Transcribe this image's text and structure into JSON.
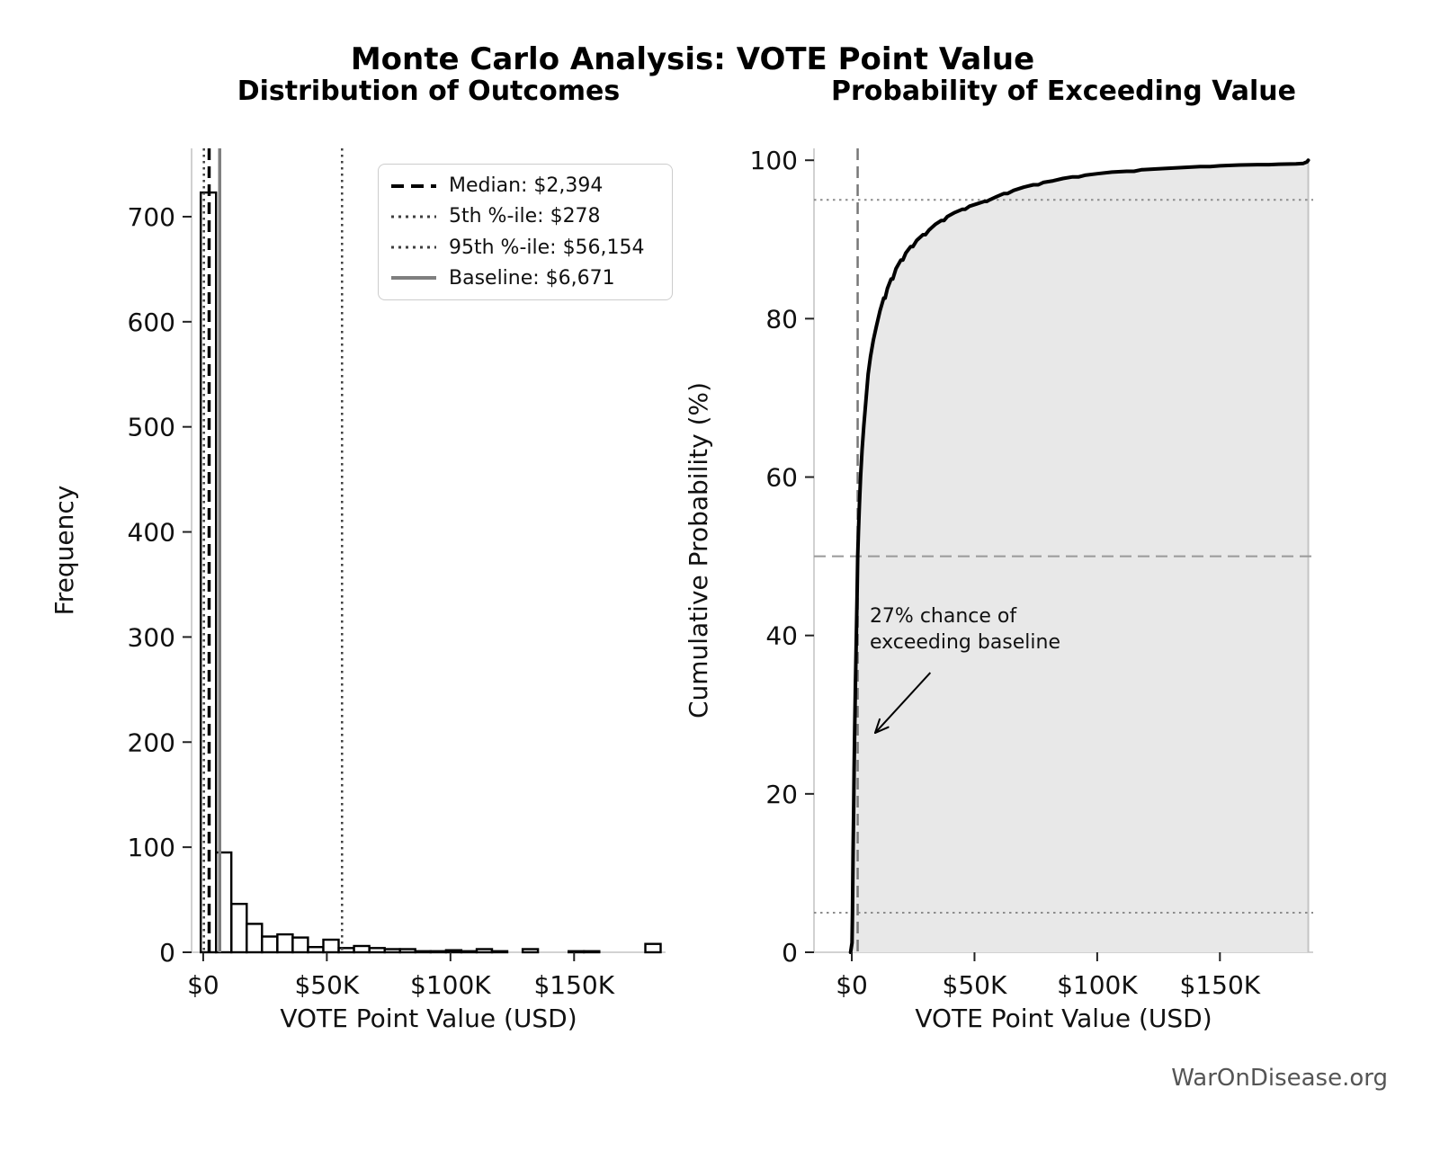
{
  "title": "Monte Carlo Analysis: VOTE Point Value",
  "watermark": "WarOnDisease.org",
  "chart_data": [
    {
      "type": "bar",
      "subtype": "histogram",
      "title": "Distribution of Outcomes",
      "xlabel": "VOTE Point Value (USD)",
      "ylabel": "Frequency",
      "xlim": [
        -4700,
        187000
      ],
      "ylim": [
        0,
        765
      ],
      "grid": false,
      "xticks": [
        {
          "v": 0,
          "label": "$0"
        },
        {
          "v": 50000,
          "label": "$50K"
        },
        {
          "v": 100000,
          "label": "$100K"
        },
        {
          "v": 150000,
          "label": "$150K"
        }
      ],
      "yticks": [
        0,
        100,
        200,
        300,
        400,
        500,
        600,
        700
      ],
      "bin_start": -1000,
      "bin_width": 6200,
      "counts": [
        723,
        95,
        46,
        27,
        15,
        17,
        14,
        5,
        12,
        4,
        6,
        4,
        3,
        3,
        1,
        1,
        2,
        1,
        3,
        1,
        0,
        3,
        0,
        0,
        1,
        1,
        0,
        0,
        0,
        8
      ],
      "bar_fill": "#ffffff",
      "bar_edge": "#000000",
      "vlines": [
        {
          "v": 2394,
          "style": "dashed",
          "color": "#000000",
          "width": 3.5,
          "name": "median-line",
          "legend": "Median: $2,394"
        },
        {
          "v": 278,
          "style": "dotted",
          "color": "#3f3f3f",
          "width": 2.5,
          "name": "p5-percentile-line",
          "legend": "5th %-ile: $278"
        },
        {
          "v": 56154,
          "style": "dotted",
          "color": "#3f3f3f",
          "width": 2.5,
          "name": "p95-percentile-line",
          "legend": "95th %-ile: $56,154"
        },
        {
          "v": 6671,
          "style": "solid",
          "color": "#7f7f7f",
          "width": 3.5,
          "name": "baseline-line",
          "legend": "Baseline: $6,671"
        }
      ],
      "legend_position": "upper right",
      "stats": {
        "median_usd": 2394,
        "p5_usd": 278,
        "p95_usd": 56154,
        "baseline_usd": 6671
      }
    },
    {
      "type": "line",
      "subtype": "empirical-cdf",
      "title": "Probability of Exceeding Value",
      "xlabel": "VOTE Point Value (USD)",
      "ylabel": "Cumulative Probability (%)",
      "xlim": [
        -15400,
        188000
      ],
      "ylim": [
        0,
        101.5
      ],
      "grid": false,
      "xticks": [
        {
          "v": 0,
          "label": "$0"
        },
        {
          "v": 50000,
          "label": "$50K"
        },
        {
          "v": 100000,
          "label": "$100K"
        },
        {
          "v": 150000,
          "label": "$150K"
        }
      ],
      "yticks": [
        0,
        20,
        40,
        60,
        80,
        100
      ],
      "line_color": "#000000",
      "line_width": 4,
      "fill_color": "#e8e8e8",
      "points": [
        [
          -500,
          0
        ],
        [
          120,
          1.2
        ],
        [
          278,
          5
        ],
        [
          400,
          8.5
        ],
        [
          560,
          13
        ],
        [
          750,
          18
        ],
        [
          950,
          23
        ],
        [
          1200,
          28.5
        ],
        [
          1500,
          34
        ],
        [
          1850,
          40
        ],
        [
          2150,
          45
        ],
        [
          2394,
          50
        ],
        [
          2700,
          53
        ],
        [
          3100,
          56.5
        ],
        [
          3600,
          60
        ],
        [
          4200,
          63.5
        ],
        [
          4900,
          66.5
        ],
        [
          5700,
          69.5
        ],
        [
          6671,
          73
        ],
        [
          7600,
          75.2
        ],
        [
          8800,
          77.3
        ],
        [
          10000,
          79
        ],
        [
          11500,
          81
        ],
        [
          13000,
          82.6
        ],
        [
          13600,
          82.6
        ],
        [
          14500,
          83.8
        ],
        [
          16000,
          85
        ],
        [
          16700,
          85
        ],
        [
          18000,
          86.3
        ],
        [
          20000,
          87.4
        ],
        [
          20800,
          87.4
        ],
        [
          22000,
          88.3
        ],
        [
          24000,
          89.1
        ],
        [
          24900,
          89.1
        ],
        [
          26500,
          89.9
        ],
        [
          29000,
          90.6
        ],
        [
          30000,
          90.6
        ],
        [
          31500,
          91.2
        ],
        [
          34000,
          91.9
        ],
        [
          36500,
          92.4
        ],
        [
          37600,
          92.4
        ],
        [
          39000,
          92.9
        ],
        [
          42000,
          93.4
        ],
        [
          45000,
          93.8
        ],
        [
          46200,
          93.8
        ],
        [
          48000,
          94.2
        ],
        [
          51000,
          94.5
        ],
        [
          54000,
          94.8
        ],
        [
          55000,
          94.8
        ],
        [
          56154,
          95
        ],
        [
          59000,
          95.4
        ],
        [
          62000,
          95.8
        ],
        [
          63500,
          95.8
        ],
        [
          66000,
          96.2
        ],
        [
          70000,
          96.6
        ],
        [
          74000,
          96.9
        ],
        [
          76000,
          96.9
        ],
        [
          78000,
          97.2
        ],
        [
          82000,
          97.4
        ],
        [
          86000,
          97.7
        ],
        [
          90000,
          97.9
        ],
        [
          92500,
          97.9
        ],
        [
          95000,
          98.1
        ],
        [
          100000,
          98.3
        ],
        [
          106000,
          98.5
        ],
        [
          112000,
          98.6
        ],
        [
          115000,
          98.6
        ],
        [
          118000,
          98.8
        ],
        [
          124000,
          98.9
        ],
        [
          130000,
          99.0
        ],
        [
          136000,
          99.1
        ],
        [
          142000,
          99.2
        ],
        [
          146000,
          99.2
        ],
        [
          150000,
          99.3
        ],
        [
          158000,
          99.4
        ],
        [
          166000,
          99.45
        ],
        [
          170000,
          99.45
        ],
        [
          174000,
          99.5
        ],
        [
          181000,
          99.55
        ],
        [
          184000,
          99.6
        ],
        [
          185500,
          99.8
        ],
        [
          186000,
          100
        ]
      ],
      "hlines": [
        {
          "v": 50,
          "style": "dashed",
          "color": "#999999",
          "width": 2,
          "name": "fifty-percent-line"
        },
        {
          "v": 95,
          "style": "dotted",
          "color": "#8c8c8c",
          "width": 2,
          "name": "ninety-five-percent-line"
        },
        {
          "v": 5,
          "style": "dotted",
          "color": "#8c8c8c",
          "width": 2,
          "name": "five-percent-line"
        }
      ],
      "vlines": [
        {
          "v": 2394,
          "style": "dashed",
          "color": "#777777",
          "width": 2.5,
          "name": "median-crosshair-line"
        }
      ],
      "annotation": {
        "lines": [
          "27% chance of",
          "exceeding baseline"
        ],
        "text_pos": [
          7300,
          44
        ],
        "arrow_start": [
          32000,
          35.3
        ],
        "arrow_end": [
          9500,
          27.7
        ],
        "probability_exceeding_baseline_pct": 27
      }
    }
  ]
}
